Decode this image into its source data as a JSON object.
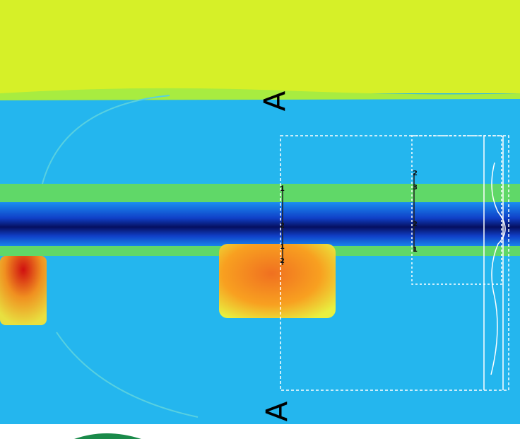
{
  "markers": {
    "top": "A",
    "bottom": "A"
  },
  "left_profile_labels": [
    "1",
    "2",
    "1",
    "2"
  ],
  "right_profile_labels": [
    "2",
    "3",
    "2",
    "1"
  ]
}
